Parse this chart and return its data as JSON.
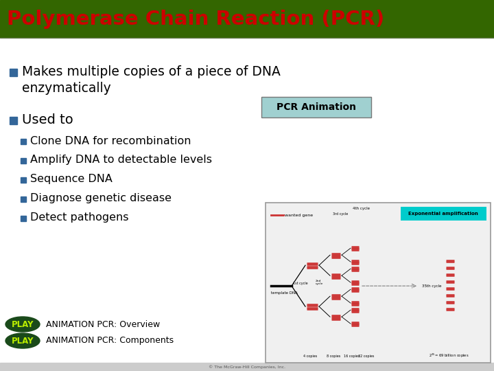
{
  "title": "Polymerase Chain Reaction (PCR)",
  "title_color": "#cc0000",
  "bg_color": "#ffffff",
  "bullet_color": "#336699",
  "sub_bullet_color": "#336699",
  "pcr_animation_label": "PCR Animation",
  "pcr_animation_bg": "#a0d0d0",
  "bullet2": "Used to",
  "sub_bullets": [
    "Clone DNA for recombination",
    "Amplify DNA to detectable levels",
    "Sequence DNA",
    "Diagnose genetic disease",
    "Detect pathogens"
  ],
  "play1_text": "ANIMATION PCR: Overview",
  "play2_text": "ANIMATION PCR: Components",
  "play_bg": "#1a4a1a",
  "play_text_color": "#bbee00",
  "top_bar_color": "#336600",
  "title_area_bg": "#e8e8e8",
  "font_color": "#000000",
  "diag_bg": "#f0f0f0",
  "diag_border": "#999999",
  "exp_amp_bg": "#00cccc",
  "dna_color": "#cc3333"
}
